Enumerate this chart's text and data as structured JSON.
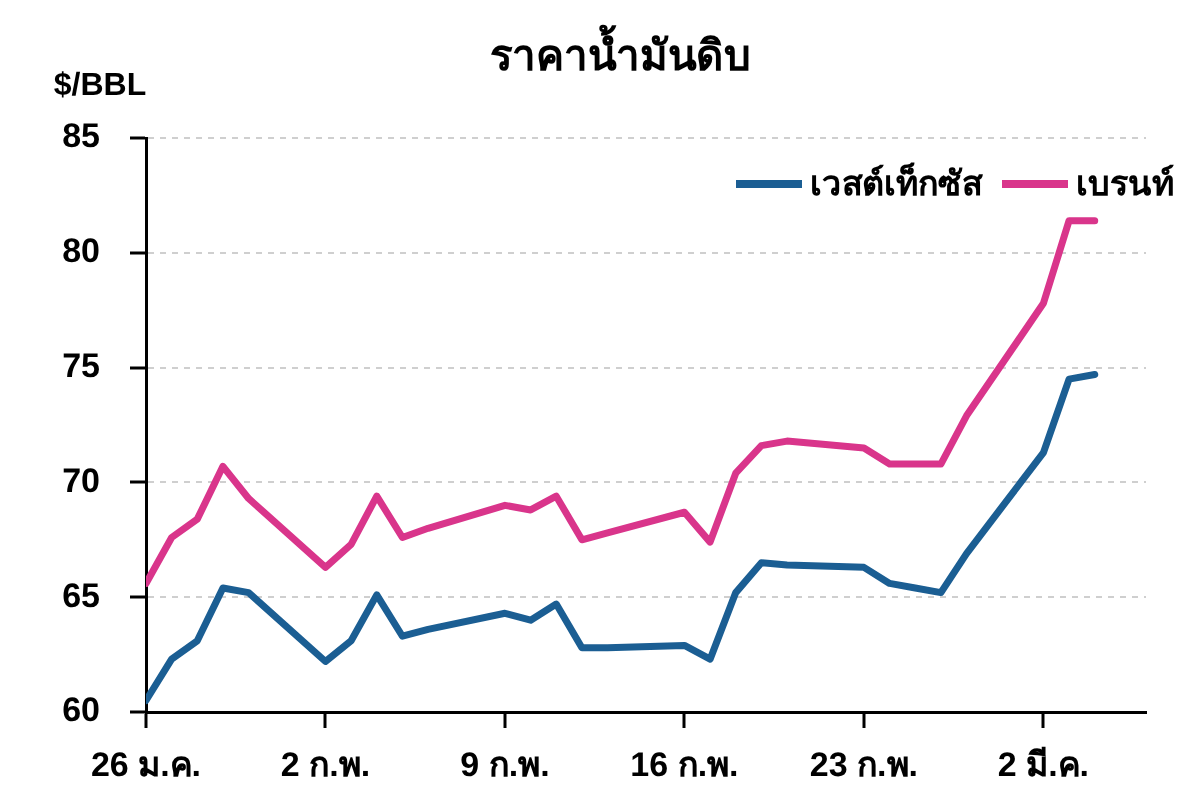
{
  "chart_data": {
    "type": "line",
    "title": "ราคาน้ำมันดิบ",
    "ylabel": "$/BBL",
    "x": [
      "--01-26",
      "--01-27",
      "--01-28",
      "--01-29",
      "--01-30",
      "--02-02",
      "--02-03",
      "--02-04",
      "--02-05",
      "--02-06",
      "--02-09",
      "--02-10",
      "--02-11",
      "--02-12",
      "--02-13",
      "--02-16",
      "--02-17",
      "--02-18",
      "--02-19",
      "--02-20",
      "--02-23",
      "--02-24",
      "--02-25",
      "--02-26",
      "--02-27",
      "--03-02",
      "--03-03",
      "--03-04"
    ],
    "xlim": [
      "--01-26",
      "--03-06"
    ],
    "xticks": [
      {
        "value": "--01-26",
        "label": "26 ม.ค."
      },
      {
        "value": "--02-02",
        "label": "2 ก.พ."
      },
      {
        "value": "--02-09",
        "label": "9 ก.พ."
      },
      {
        "value": "--02-16",
        "label": "16 ก.พ."
      },
      {
        "value": "--02-23",
        "label": "23 ก.พ."
      },
      {
        "value": "--03-02",
        "label": "2 มี.ค."
      }
    ],
    "ylim": [
      60,
      85
    ],
    "yticks": [
      60,
      65,
      70,
      75,
      80,
      85
    ],
    "grid": "y",
    "legend": "top right",
    "marker": "none",
    "line_style": "solid",
    "series": [
      {
        "name": "เวสต์เท็กซัส",
        "color": "#1b5e93",
        "values": [
          60.5,
          62.3,
          63.1,
          65.4,
          65.2,
          62.2,
          63.1,
          65.1,
          63.3,
          63.6,
          64.3,
          64.0,
          64.7,
          62.8,
          62.8,
          62.9,
          62.3,
          65.2,
          66.5,
          66.4,
          66.3,
          65.6,
          65.4,
          65.2,
          66.9,
          71.3,
          74.5,
          74.7
        ]
      },
      {
        "name": "เบรนท์",
        "color": "#d9358b",
        "values": [
          65.6,
          67.6,
          68.4,
          70.7,
          69.3,
          66.3,
          67.3,
          69.4,
          67.6,
          68.0,
          69.0,
          68.8,
          69.4,
          67.5,
          67.8,
          68.7,
          67.4,
          70.4,
          71.6,
          71.8,
          71.5,
          70.8,
          70.8,
          70.8,
          72.9,
          77.8,
          81.4,
          81.4
        ]
      }
    ]
  }
}
